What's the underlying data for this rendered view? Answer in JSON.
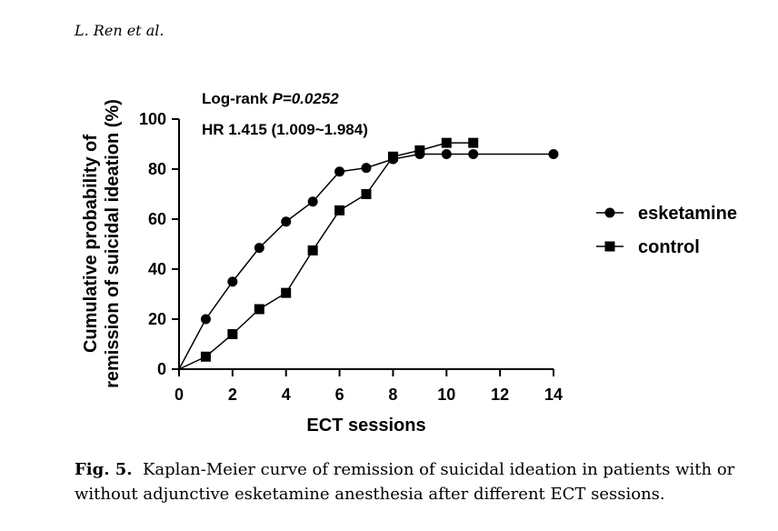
{
  "running_head": "L. Ren et al.",
  "caption": {
    "label": "Fig. 5.",
    "text": "Kaplan-Meier curve of remission of suicidal ideation in patients with or without adjunctive esketamine anesthesia after different ECT sessions."
  },
  "chart_data": {
    "type": "line",
    "title": "",
    "xlabel": "ECT sessions",
    "ylabel_lines": [
      "Cumulative probability of",
      "remission of suicidal ideation (%)"
    ],
    "xlim": [
      0,
      14
    ],
    "ylim": [
      0,
      100
    ],
    "xticks": [
      0,
      2,
      4,
      6,
      8,
      10,
      12,
      14
    ],
    "yticks": [
      0,
      20,
      40,
      60,
      80,
      100
    ],
    "grid": false,
    "legend_position": "right",
    "annotations": {
      "logrank_prefix": "Log-rank ",
      "logrank_p": "P=0.0252",
      "hr": "HR 1.415 (1.009~1.984)"
    },
    "series": [
      {
        "name": "esketamine",
        "marker": "circle",
        "color": "#000000",
        "x": [
          1,
          2,
          3,
          4,
          5,
          6,
          7,
          8,
          9,
          10,
          11,
          14
        ],
        "y": [
          20,
          35,
          48.5,
          59,
          67,
          79,
          80.5,
          84,
          86,
          86,
          86,
          86
        ],
        "line_start": [
          0,
          0
        ]
      },
      {
        "name": "control",
        "marker": "square",
        "color": "#000000",
        "x": [
          1,
          2,
          3,
          4,
          5,
          6,
          7,
          8,
          9,
          10,
          11
        ],
        "y": [
          5,
          14,
          24,
          30.5,
          47.5,
          63.5,
          70,
          85,
          87.5,
          90.5,
          90.5
        ],
        "line_start": [
          0,
          0
        ]
      }
    ]
  }
}
